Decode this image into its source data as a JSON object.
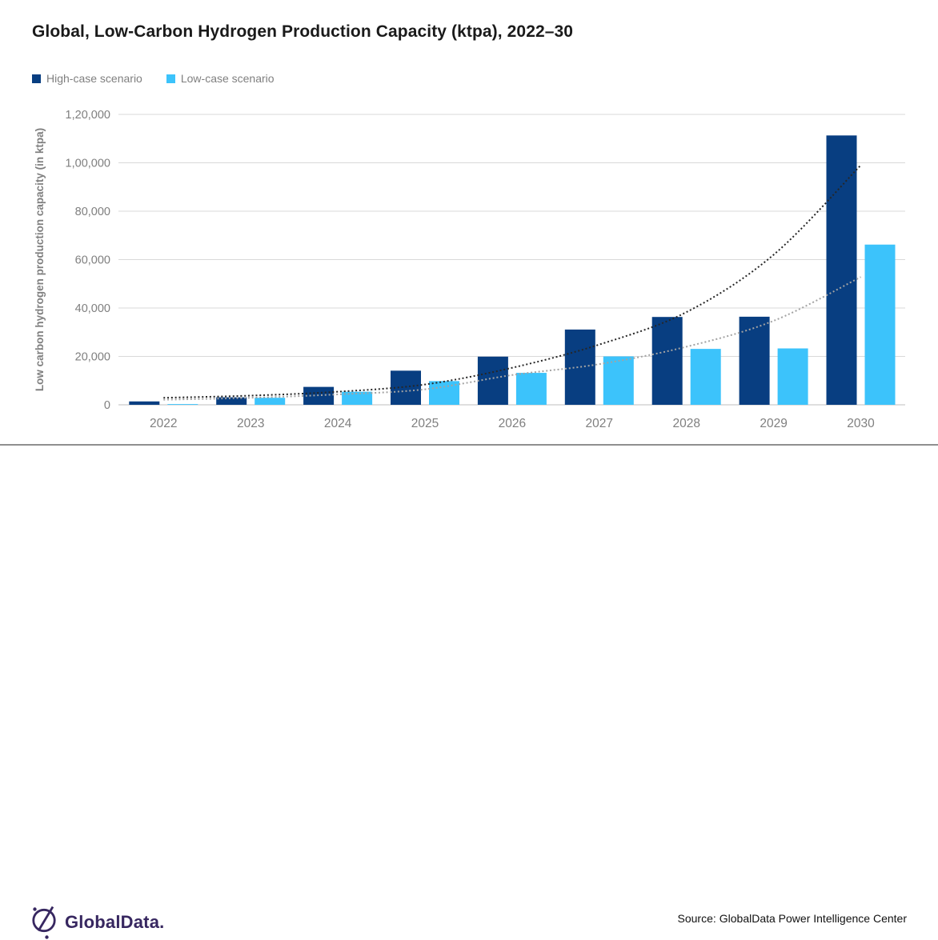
{
  "title": "Global, Low-Carbon Hydrogen Production Capacity (ktpa), 2022–30",
  "legend": [
    {
      "label": "High-case scenario",
      "color": "#083e81"
    },
    {
      "label": "Low-case scenario",
      "color": "#3cc3fb"
    }
  ],
  "chart_data": {
    "type": "bar",
    "title": "Global, Low-Carbon Hydrogen Production Capacity (ktpa), 2022–30",
    "categories": [
      "2022",
      "2023",
      "2024",
      "2025",
      "2026",
      "2027",
      "2028",
      "2029",
      "2030"
    ],
    "series": [
      {
        "name": "High-case scenario",
        "color": "#083e81",
        "values": [
          1400,
          3100,
          7400,
          14100,
          19900,
          31100,
          36300,
          36400,
          111300
        ]
      },
      {
        "name": "Low-case scenario",
        "color": "#3cc3fb",
        "values": [
          300,
          2900,
          5400,
          9800,
          13200,
          20000,
          23100,
          23300,
          66200
        ]
      }
    ],
    "trendlines": [
      {
        "name": "High-case trend",
        "color": "#262626",
        "style": "dotted",
        "values": [
          2900,
          3800,
          5400,
          8400,
          15300,
          24900,
          38300,
          62000,
          99000
        ]
      },
      {
        "name": "Low-case trend",
        "color": "#a3a3a3",
        "style": "dotted",
        "values": [
          2100,
          2900,
          4300,
          6400,
          12300,
          16800,
          24000,
          34700,
          52800
        ]
      }
    ],
    "xlabel": "",
    "ylabel": "Low carbon hydrogen production capacity (in ktpa)",
    "ylim": [
      0,
      120000
    ],
    "ytick_interval": 20000,
    "ytick_labels": [
      "0",
      "20,000",
      "40,000",
      "60,000",
      "80,000",
      "1,00,000",
      "1,20,000"
    ],
    "grid": true,
    "legend_position": "top-left",
    "bar_colors": {
      "high": "#083e81",
      "low": "#3cc3fb"
    },
    "axis_text_color": "#7f7f7f",
    "gridline_color": "#d9d9d9",
    "baseline_color": "#bfbfbf"
  },
  "footer": {
    "logo_text": "GlobalData.",
    "source_label": "Source:",
    "source_text": "GlobalData Power Intelligence Center"
  }
}
